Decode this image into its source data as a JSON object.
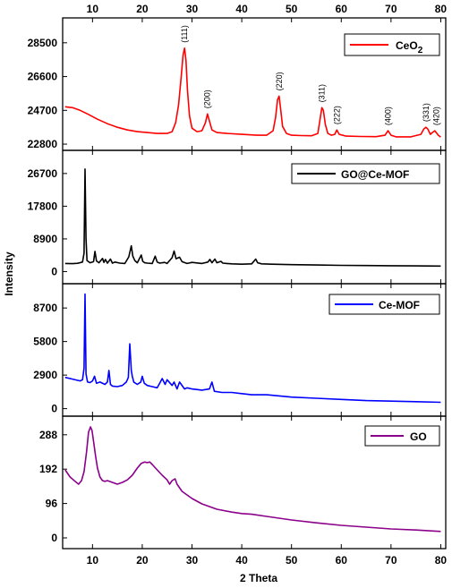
{
  "chart_data": {
    "type": "line",
    "xlabel": "2 Theta",
    "ylabel": "Intensity",
    "xlim": [
      4,
      81
    ],
    "x_ticks": [
      10,
      20,
      30,
      40,
      50,
      60,
      70,
      80
    ],
    "x_tick_labels": [
      "10",
      "20",
      "30",
      "40",
      "50",
      "60",
      "70",
      "80"
    ],
    "grid": false,
    "panels": [
      {
        "series": [
          {
            "name": "CeO",
            "name_sub": "2",
            "color": "#ff0000",
            "x": [
              4.5,
              6,
              7.5,
              9,
              11,
              13,
              15,
              17,
              19,
              21,
              23,
              25,
              26,
              26.7,
              27.3,
              27.8,
              28.2,
              28.5,
              28.8,
              29.1,
              29.5,
              30,
              31,
              32,
              32.7,
              33.1,
              33.5,
              34,
              35,
              37,
              40,
              43,
              45,
              46.3,
              46.8,
              47.2,
              47.5,
              47.8,
              48.2,
              49,
              50,
              52,
              54,
              55.3,
              55.8,
              56.1,
              56.4,
              56.8,
              57.3,
              58,
              58.7,
              59.1,
              59.6,
              61,
              64,
              67,
              68.8,
              69.4,
              70,
              71,
              74,
              76,
              76.6,
              77,
              77.4,
              77.9,
              78.3,
              78.8,
              79.1,
              79.5,
              80
            ],
            "y": [
              24900,
              24850,
              24700,
              24500,
              24200,
              23950,
              23750,
              23600,
              23500,
              23450,
              23400,
              23400,
              23500,
              24000,
              25000,
              26500,
              27800,
              28200,
              27500,
              25800,
              24400,
              23700,
              23500,
              23550,
              24000,
              24500,
              24100,
              23600,
              23450,
              23400,
              23350,
              23300,
              23300,
              23550,
              24300,
              25300,
              25500,
              24800,
              23800,
              23400,
              23300,
              23280,
              23270,
              23400,
              24300,
              24850,
              24700,
              23900,
              23400,
              23300,
              23350,
              23600,
              23350,
              23250,
              23230,
              23220,
              23300,
              23550,
              23300,
              23210,
              23210,
              23350,
              23650,
              23750,
              23650,
              23350,
              23450,
              23550,
              23450,
              23300,
              23200
            ],
            "ylim": [
              22450,
              29900
            ]
          }
        ],
        "y_ticks": [
          22800,
          24700,
          26600,
          28500
        ],
        "y_tick_labels": [
          "22800",
          "24700",
          "26600",
          "28500"
        ],
        "annotations": [
          {
            "text": "(111)",
            "x": 28.5,
            "y": 28200
          },
          {
            "text": "(200)",
            "x": 33.1,
            "y": 24500
          },
          {
            "text": "(220)",
            "x": 47.5,
            "y": 25500
          },
          {
            "text": "(311)",
            "x": 56.1,
            "y": 24850
          },
          {
            "text": "(222)",
            "x": 59.1,
            "y": 23600
          },
          {
            "text": "(400)",
            "x": 69.4,
            "y": 23550
          },
          {
            "text": "(331)",
            "x": 77,
            "y": 23750
          },
          {
            "text": "(420)",
            "x": 79.1,
            "y": 23550
          }
        ]
      },
      {
        "series": [
          {
            "name": "GO@Ce-MOF",
            "color": "#000000",
            "x": [
              4.5,
              6,
              7,
              8,
              8.3,
              8.5,
              8.7,
              8.9,
              9.5,
              10.2,
              10.5,
              10.8,
              11.3,
              12,
              12.3,
              12.6,
              13,
              13.6,
              14,
              14.5,
              15.5,
              16.5,
              17.3,
              17.8,
              18.1,
              18.5,
              19,
              19.8,
              20.1,
              20.5,
              21,
              22,
              22.6,
              23,
              23.5,
              24.5,
              25,
              26,
              26.4,
              26.8,
              27.5,
              28,
              29,
              30,
              32,
              33.2,
              33.6,
              34,
              34.6,
              35,
              35.8,
              36.2,
              37,
              38,
              40,
              42,
              42.8,
              43.2,
              44,
              46,
              50,
              55,
              60,
              65,
              70,
              75,
              80
            ],
            "y": [
              2200,
              2150,
              2250,
              2600,
              5000,
              27900,
              9000,
              3000,
              2400,
              2700,
              5500,
              2900,
              2400,
              3600,
              2500,
              3300,
              2300,
              3400,
              2300,
              2600,
              2300,
              2200,
              4000,
              7000,
              4200,
              3000,
              2400,
              4500,
              2800,
              2400,
              2300,
              2200,
              4200,
              2600,
              2300,
              2500,
              2200,
              3800,
              5600,
              3500,
              3900,
              2700,
              2200,
              2500,
              2200,
              2600,
              3300,
              2400,
              3400,
              2400,
              2800,
              2300,
              2200,
              2100,
              2000,
              2100,
              3400,
              2400,
              2100,
              2000,
              1900,
              1800,
              1700,
              1650,
              1600,
              1550,
              1500
            ],
            "ylim": [
              -3300,
              33000
            ]
          }
        ],
        "y_ticks": [
          0,
          8900,
          17800,
          26700
        ],
        "y_tick_labels": [
          "0",
          "8900",
          "17800",
          "26700"
        ]
      },
      {
        "series": [
          {
            "name": "Ce-MOF",
            "color": "#0000ff",
            "x": [
              4.5,
              6,
              7.5,
              8,
              8.3,
              8.5,
              8.7,
              9,
              9.5,
              10,
              10.4,
              10.8,
              11.5,
              12.5,
              13,
              13.3,
              13.6,
              14,
              15,
              16,
              16.8,
              17.2,
              17.5,
              17.8,
              18,
              18.3,
              19,
              19.7,
              20,
              20.4,
              21,
              22,
              23,
              23.5,
              24,
              24.6,
              25,
              26,
              26.4,
              27,
              27.5,
              28.5,
              29,
              30,
              32,
              33.5,
              34,
              34.5,
              36,
              38,
              40,
              42,
              45,
              50,
              55,
              60,
              65,
              70,
              75,
              80
            ],
            "y": [
              2700,
              2550,
              2400,
              2500,
              3500,
              9900,
              3000,
              2300,
              2250,
              2400,
              2800,
              2200,
              2300,
              2100,
              2300,
              3300,
              2100,
              1950,
              1900,
              2000,
              2300,
              2700,
              5600,
              3300,
              2800,
              2300,
              2100,
              2300,
              2800,
              2200,
              2000,
              1900,
              1800,
              2200,
              2600,
              2100,
              2500,
              2000,
              2300,
              1700,
              2300,
              1700,
              1800,
              1700,
              1600,
              1700,
              2300,
              1500,
              1400,
              1400,
              1300,
              1200,
              1200,
              1000,
              900,
              800,
              700,
              650,
              600,
              550
            ],
            "ylim": [
              -650,
              10800
            ]
          }
        ],
        "y_ticks": [
          0,
          2900,
          5800,
          8700
        ],
        "y_tick_labels": [
          "0",
          "2900",
          "5800",
          "8700"
        ]
      },
      {
        "series": [
          {
            "name": "GO",
            "color": "#8b008b",
            "x": [
              4.5,
              5.5,
              6.5,
              7.2,
              7.8,
              8.3,
              8.8,
              9.2,
              9.6,
              9.9,
              10.2,
              10.6,
              11,
              11.5,
              12,
              12.5,
              13,
              14,
              15,
              16,
              17,
              18,
              19,
              19.8,
              20.5,
              21,
              21.5,
              22,
              23,
              24,
              25,
              25.5,
              26,
              26.6,
              27,
              28,
              30,
              32,
              35,
              38,
              40,
              42,
              45,
              50,
              55,
              60,
              65,
              70,
              75,
              80
            ],
            "y": [
              190,
              170,
              158,
              150,
              160,
              185,
              240,
              295,
              310,
              300,
              270,
              230,
              195,
              170,
              160,
              158,
              160,
              155,
              150,
              155,
              162,
              175,
              195,
              208,
              212,
              210,
              212,
              205,
              190,
              175,
              162,
              150,
              160,
              165,
              150,
              130,
              110,
              95,
              80,
              72,
              68,
              66,
              60,
              50,
              42,
              35,
              30,
              25,
              22,
              18
            ],
            "ylim": [
              -30,
              340
            ]
          }
        ],
        "y_ticks": [
          0,
          96,
          192,
          288
        ],
        "y_tick_labels": [
          "0",
          "96",
          "192",
          "288"
        ]
      }
    ]
  }
}
